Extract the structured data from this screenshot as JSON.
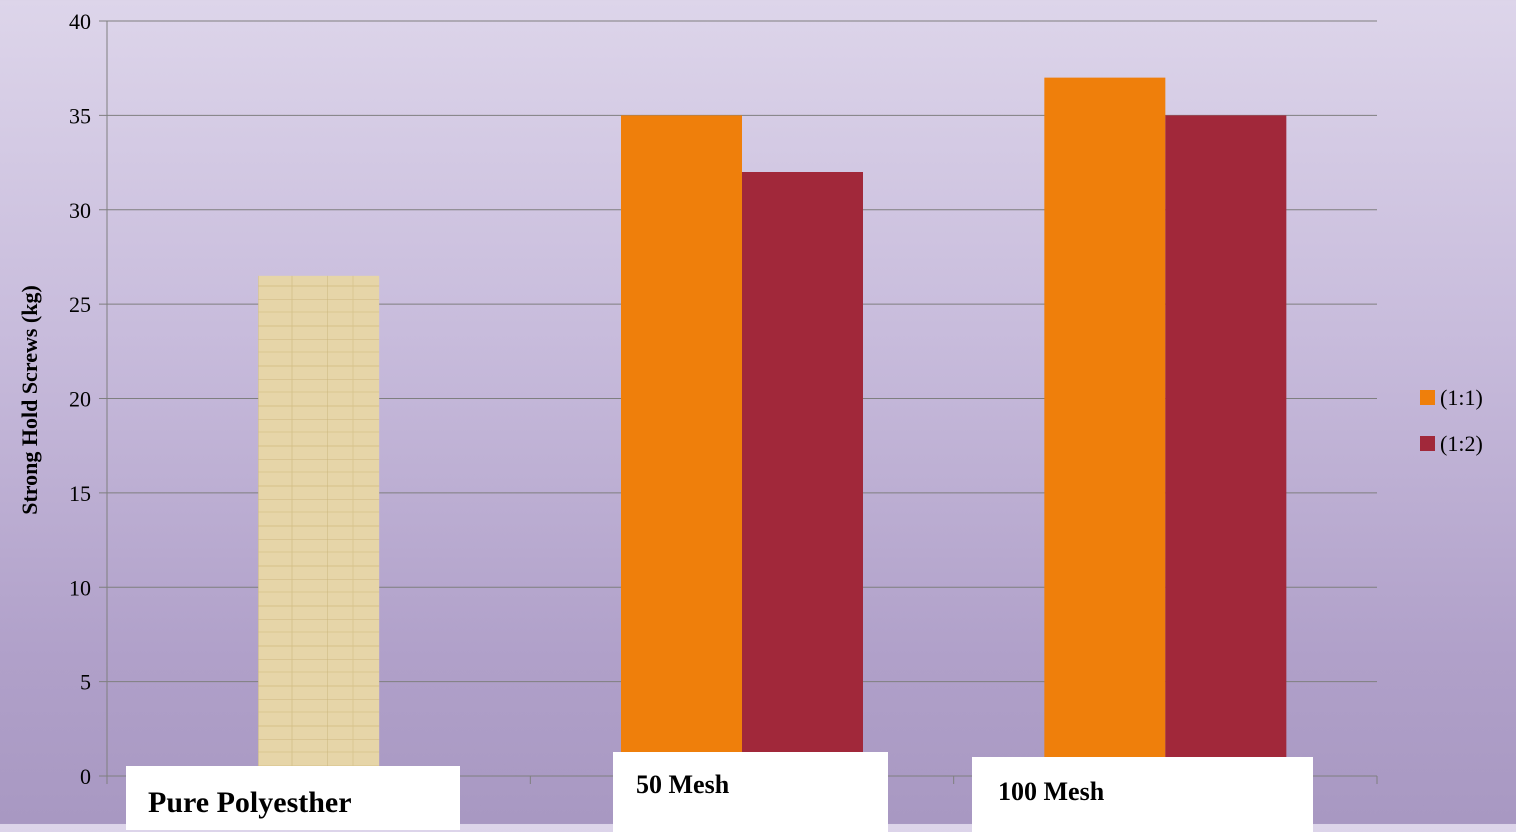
{
  "chart_data": {
    "type": "bar",
    "title": "",
    "xlabel": "",
    "ylabel": "Strong Hold Screws (kg)",
    "ylim": [
      0,
      40
    ],
    "yticks": [
      0,
      5,
      10,
      15,
      20,
      25,
      30,
      35,
      40
    ],
    "grid": true,
    "legend": "right",
    "categories": [
      "Pure Polyesther",
      "50 Mesh",
      "100 Mesh"
    ],
    "pure_value": 26.5,
    "pure_color": "#e3d2a4",
    "series": [
      {
        "name": "(1:1)",
        "color": "#ef7f0b",
        "values": [
          null,
          35,
          37
        ]
      },
      {
        "name": "(1:2)",
        "color": "#a1283a",
        "values": [
          null,
          32,
          35
        ]
      }
    ]
  }
}
